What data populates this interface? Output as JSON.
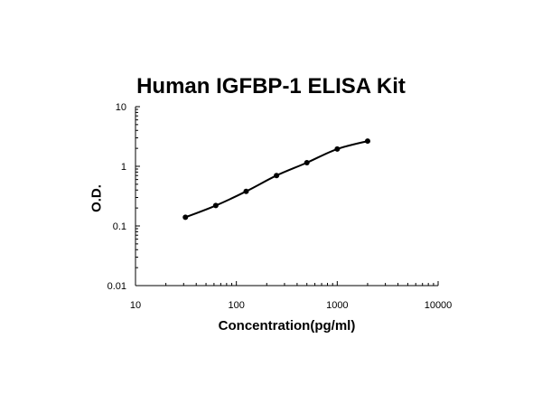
{
  "chart_data": {
    "type": "line",
    "title": "Human IGFBP-1 ELISA Kit",
    "xlabel": "Concentration(pg/ml)",
    "ylabel": "O.D.",
    "x_scale": "log",
    "y_scale": "log",
    "xlim": [
      10,
      10000
    ],
    "ylim": [
      0.01,
      10
    ],
    "x_ticks": [
      "10",
      "100",
      "1000",
      "10000"
    ],
    "y_ticks": [
      "0.01",
      "0.1",
      "1",
      "10"
    ],
    "grid": false,
    "legend": "none",
    "series": [
      {
        "x": [
          31.25,
          62.5,
          125,
          250,
          500,
          1000,
          2000
        ],
        "y": [
          0.14,
          0.22,
          0.38,
          0.7,
          1.15,
          1.95,
          2.65
        ]
      }
    ]
  }
}
